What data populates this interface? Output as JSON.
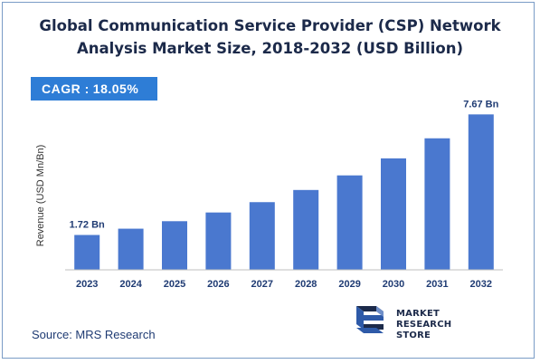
{
  "title": {
    "line1": "Global Communication Service Provider (CSP) Network",
    "line2": "Analysis Market Size, 2018-2032 (USD Billion)"
  },
  "cagr": {
    "label": "CAGR :",
    "value": "18.05%"
  },
  "source": "Source: MRS Research",
  "logo": {
    "line1": "MARKET",
    "line2": "RESEARCH STORE"
  },
  "colors": {
    "bar": "#4a78cf",
    "cagr_bg": "#2e7dd6",
    "title": "#1c2a4a",
    "frame": "#7a9cc6"
  },
  "chart_data": {
    "type": "bar",
    "title": "Global Communication Service Provider (CSP) Network Analysis Market Size, 2018-2032 (USD Billion)",
    "xlabel": "",
    "ylabel": "Revenue (USD Mn/Bn)",
    "categories": [
      "2023",
      "2024",
      "2025",
      "2026",
      "2027",
      "2028",
      "2029",
      "2030",
      "2031",
      "2032"
    ],
    "values": [
      1.72,
      2.03,
      2.4,
      2.83,
      3.34,
      3.94,
      4.66,
      5.5,
      6.49,
      7.67
    ],
    "data_labels": [
      {
        "index": 0,
        "text": "1.72 Bn"
      },
      {
        "index": 9,
        "text": "7.67 Bn"
      }
    ],
    "ylim": [
      0,
      8.4
    ],
    "grid": false,
    "legend": "none"
  }
}
